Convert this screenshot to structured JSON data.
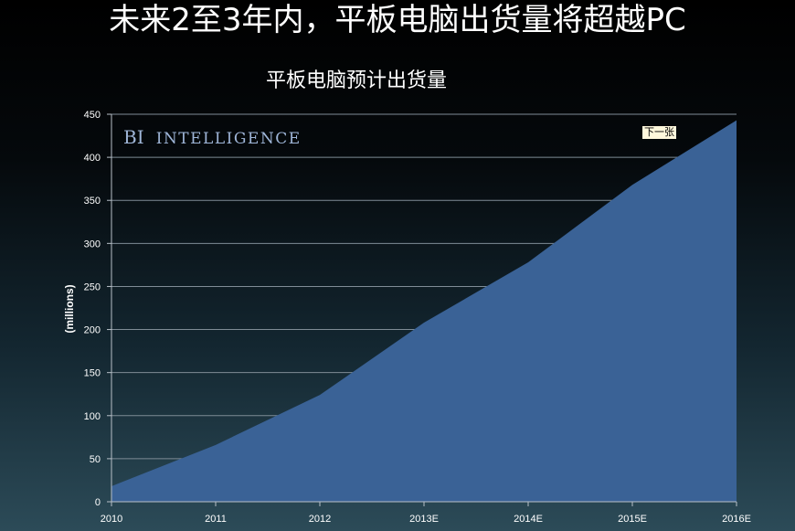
{
  "slide": {
    "title": "未来2至3年内，平板电脑出货量将超越PC",
    "next_button_label": "下一张"
  },
  "colors": {
    "area_fill": "#3a6296",
    "grid": "#7f8c96",
    "axis": "#b8c0c8",
    "text": "#ffffff",
    "watermark": "#9fb6d8"
  },
  "watermark": {
    "text_main": "BI",
    "text_sub": "INTELLIGENCE"
  },
  "chart_data": {
    "type": "area",
    "title": "平板电脑预计出货量",
    "xlabel": "",
    "ylabel": "(millions)",
    "categories": [
      "2010",
      "2011",
      "2012",
      "2013E",
      "2014E",
      "2015E",
      "2016E"
    ],
    "values": [
      18,
      66,
      124,
      208,
      278,
      368,
      443
    ],
    "ylim": [
      0,
      450
    ],
    "yticks": [
      "0",
      "50",
      "100",
      "150",
      "200",
      "250",
      "300",
      "350",
      "400",
      "450"
    ],
    "grid": true,
    "legend": "none"
  }
}
